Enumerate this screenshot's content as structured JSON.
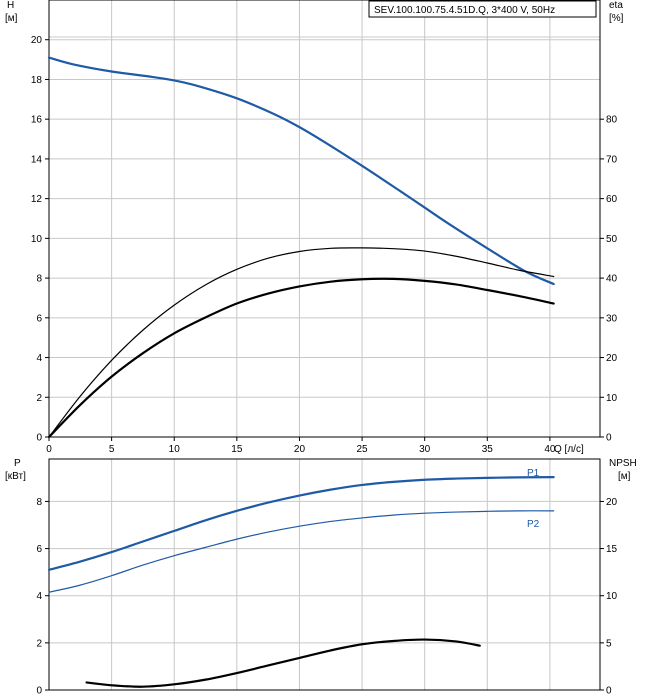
{
  "chart_data": [
    {
      "type": "line",
      "title": "SEV.100.100.75.4.51D.Q, 3*400 V, 50Hz",
      "xlabel": "Q [л/с]",
      "ylabel_left": "H",
      "ylabel_left_unit": "[м]",
      "ylabel_right": "eta",
      "ylabel_right_unit": "[%]",
      "xlim": [
        0,
        44
      ],
      "xticks": [
        0,
        5,
        10,
        15,
        20,
        25,
        30,
        35,
        40
      ],
      "ylim_left": [
        0,
        22
      ],
      "yticks_left": [
        0,
        2,
        4,
        6,
        8,
        10,
        12,
        14,
        16,
        18,
        20
      ],
      "ylim_right": [
        0,
        110
      ],
      "yticks_right": [
        0,
        10,
        20,
        30,
        40,
        50,
        60,
        70,
        80
      ],
      "grid": true,
      "series": [
        {
          "axis": "left",
          "color": "#1f5aa6",
          "width": 2.2,
          "x": [
            0,
            2,
            5,
            8,
            10,
            12,
            15,
            18,
            20,
            22,
            25,
            28,
            30,
            32,
            35,
            38,
            40.3
          ],
          "y": [
            19.1,
            18.75,
            18.4,
            18.15,
            17.95,
            17.65,
            17.05,
            16.25,
            15.6,
            14.85,
            13.65,
            12.4,
            11.55,
            10.7,
            9.5,
            8.35,
            7.7
          ]
        },
        {
          "axis": "right",
          "color": "#000000",
          "width": 1.2,
          "x": [
            0,
            2.5,
            5,
            7.5,
            10,
            12.5,
            15,
            17.5,
            20,
            22.5,
            25,
            27.5,
            30,
            32.5,
            35,
            37.5,
            40.3
          ],
          "y": [
            0,
            10.3,
            19.3,
            26.9,
            33.2,
            38.3,
            42.2,
            45.0,
            46.7,
            47.5,
            47.6,
            47.4,
            46.8,
            45.5,
            43.8,
            42.0,
            40.4
          ]
        },
        {
          "axis": "right",
          "color": "#000000",
          "width": 2.2,
          "x": [
            0,
            2.5,
            5,
            7.5,
            10,
            12.5,
            15,
            17.5,
            20,
            22.5,
            25,
            27.5,
            30,
            32.5,
            35,
            37.5,
            40.3
          ],
          "y": [
            0,
            8.1,
            15.2,
            21.1,
            26.1,
            30.1,
            33.6,
            36.1,
            37.9,
            39.1,
            39.7,
            39.8,
            39.3,
            38.4,
            37.0,
            35.5,
            33.6
          ]
        }
      ]
    },
    {
      "type": "line",
      "xlim": [
        0,
        44
      ],
      "ylabel_left": "P",
      "ylabel_left_unit": "[кВт]",
      "ylabel_right": "NPSH",
      "ylabel_right_unit": "[м]",
      "ylim_left": [
        0,
        9.8
      ],
      "yticks_left": [
        0,
        2,
        4,
        6,
        8
      ],
      "ylim_right": [
        0,
        24.5
      ],
      "yticks_right": [
        0,
        5,
        10,
        15,
        20
      ],
      "grid": true,
      "series": [
        {
          "name": "P1",
          "axis": "left",
          "color": "#1f5aa6",
          "width": 2.2,
          "x": [
            0,
            2.5,
            5,
            7.5,
            10,
            12.5,
            15,
            17.5,
            20,
            22.5,
            25,
            27.5,
            30,
            32.5,
            35,
            37.5,
            40.3
          ],
          "y": [
            5.1,
            5.45,
            5.85,
            6.3,
            6.75,
            7.2,
            7.6,
            7.95,
            8.25,
            8.5,
            8.7,
            8.83,
            8.92,
            8.97,
            9.0,
            9.02,
            9.03
          ]
        },
        {
          "name": "P2",
          "axis": "left",
          "color": "#1f5aa6",
          "width": 1.2,
          "x": [
            0,
            2.5,
            5,
            7.5,
            10,
            12.5,
            15,
            17.5,
            20,
            22.5,
            25,
            27.5,
            30,
            32.5,
            35,
            37.5,
            40.3
          ],
          "y": [
            4.15,
            4.45,
            4.85,
            5.3,
            5.7,
            6.05,
            6.4,
            6.7,
            6.95,
            7.15,
            7.3,
            7.42,
            7.5,
            7.55,
            7.58,
            7.6,
            7.6
          ]
        },
        {
          "axis": "right",
          "color": "#000000",
          "width": 2.2,
          "x": [
            3,
            5,
            7.5,
            10,
            12.5,
            15,
            17.5,
            20,
            22.5,
            25,
            27.5,
            30,
            32.5,
            34.4
          ],
          "y": [
            0.8,
            0.5,
            0.35,
            0.6,
            1.1,
            1.8,
            2.6,
            3.4,
            4.2,
            4.85,
            5.2,
            5.35,
            5.15,
            4.7
          ]
        }
      ]
    }
  ]
}
